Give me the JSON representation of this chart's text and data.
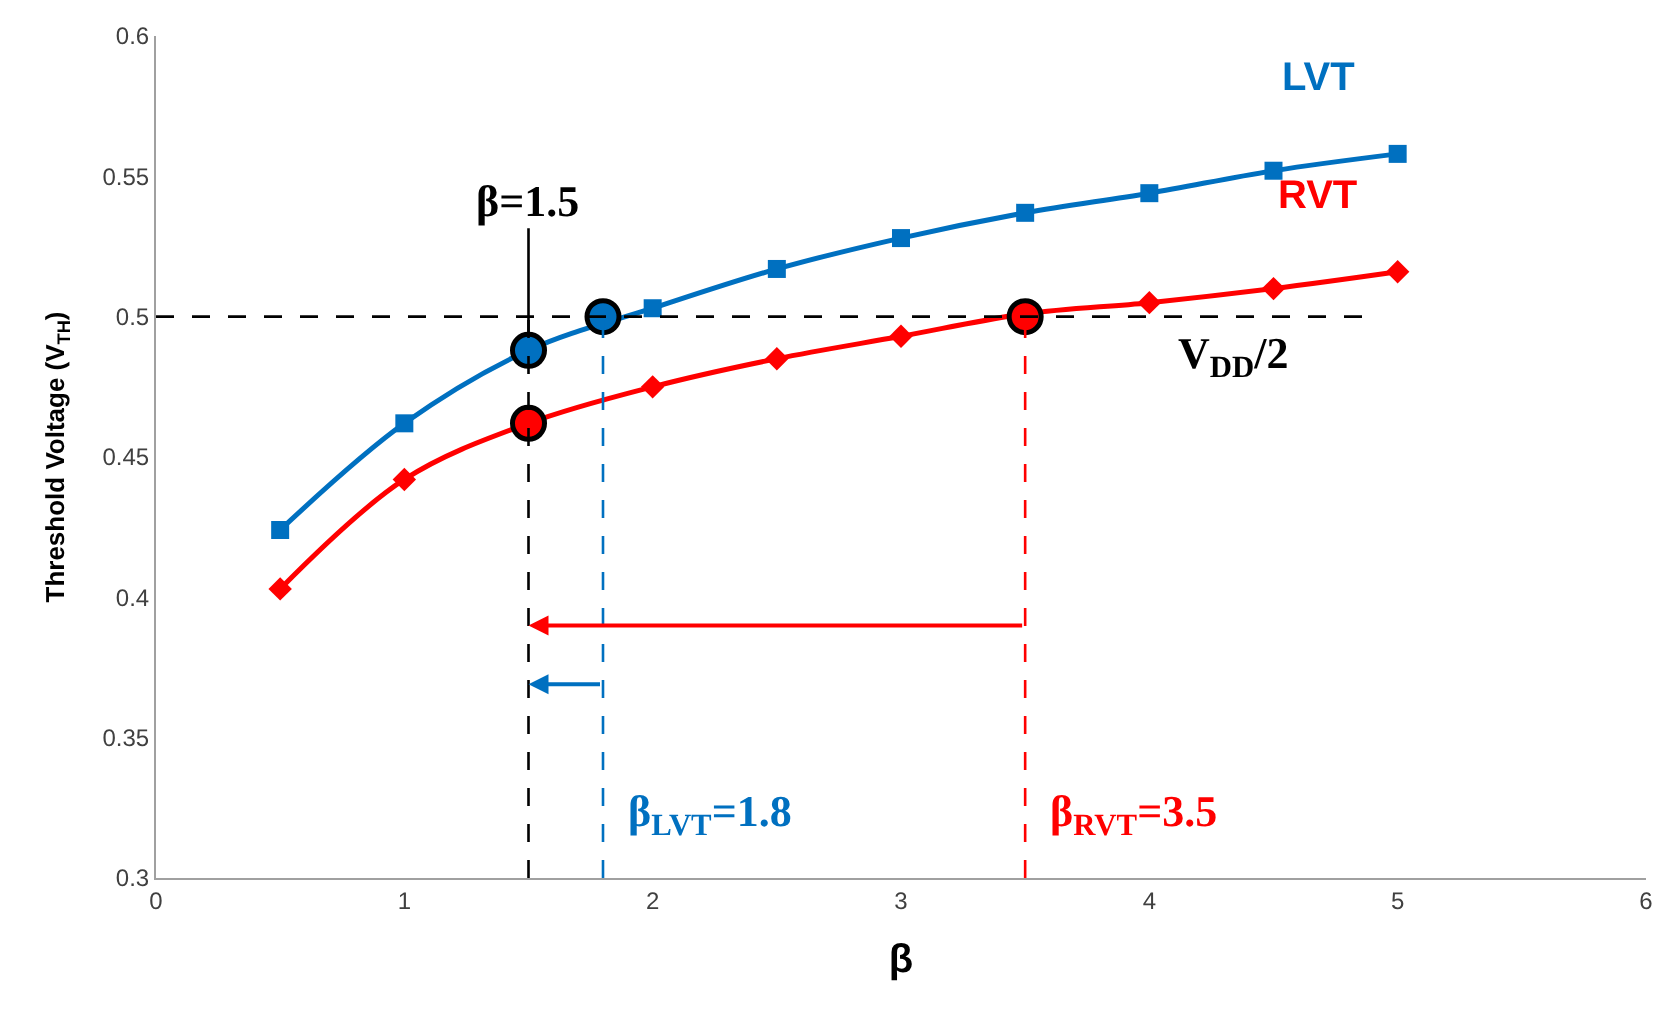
{
  "chart_data": {
    "type": "line",
    "xlabel": "β",
    "ylabel": "Threshold Voltage (V$_{TH}$)",
    "xlim": [
      0,
      6
    ],
    "xticks": [
      0,
      1,
      2,
      3,
      4,
      5,
      6
    ],
    "ylim": [
      0.3,
      0.6
    ],
    "yticks": [
      0.3,
      0.35,
      0.4,
      0.45,
      0.5,
      0.55,
      0.6
    ],
    "legend": false,
    "series": [
      {
        "name": "LVT",
        "color": "#0070c0",
        "marker": "square",
        "x": [
          0.5,
          1,
          1.5,
          2,
          2.5,
          3,
          3.5,
          4,
          4.5,
          5
        ],
        "values": [
          0.424,
          0.462,
          0.488,
          0.503,
          0.517,
          0.528,
          0.537,
          0.544,
          0.552,
          0.558
        ]
      },
      {
        "name": "RVT",
        "color": "#ff0000",
        "marker": "diamond",
        "x": [
          0.5,
          1,
          1.5,
          2,
          2.5,
          3,
          3.5,
          4,
          4.5,
          5
        ],
        "values": [
          0.403,
          0.442,
          0.462,
          0.475,
          0.485,
          0.493,
          0.501,
          0.505,
          0.51,
          0.516
        ]
      },
      {
        "type": "scatter",
        "color": "#0070c0",
        "marker": "circle",
        "x": [
          1.5,
          1.8
        ],
        "values": [
          0.488,
          0.5
        ]
      },
      {
        "type": "scatter",
        "color": "#ff0000",
        "marker": "circle",
        "x": [
          1.5,
          3.5
        ],
        "values": [
          0.462,
          0.5
        ]
      }
    ],
    "ref_lines": [
      {
        "axis": "y",
        "value": 0.5,
        "color": "#000000",
        "line_style": "dashed"
      },
      {
        "axis": "x",
        "value": 1.5,
        "color": "#000000",
        "line_style": "dashed"
      },
      {
        "axis": "x",
        "value": 1.8,
        "color": "#0070c0",
        "line_style": "dashed"
      },
      {
        "axis": "x",
        "value": 3.5,
        "color": "#ff0000",
        "line_style": "dashed"
      }
    ],
    "annotations": [
      {
        "text": "β=1.5",
        "x": 1.5,
        "y": 0.488
      },
      {
        "text": "V$_{DD}$/2",
        "x": 4.1,
        "y": 0.5
      },
      {
        "text": "β$_{LVT}$=1.8",
        "x": 1.8,
        "y": 0.3
      },
      {
        "text": "β$_{RVT}$=3.5",
        "x": 3.5,
        "y": 0.3
      }
    ]
  }
}
